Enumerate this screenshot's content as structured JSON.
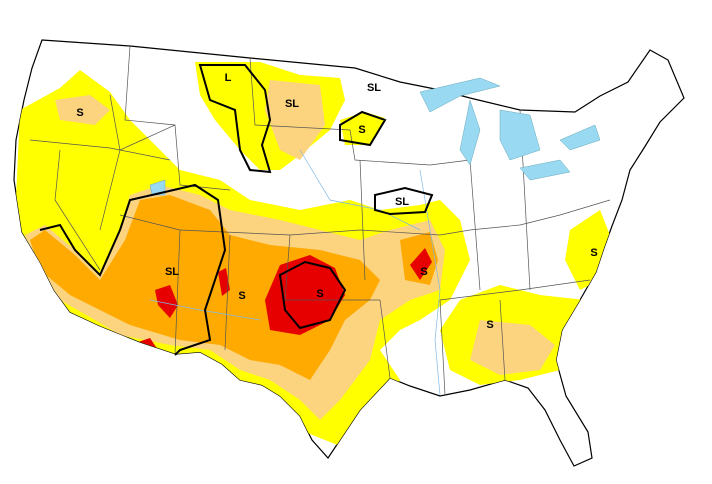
{
  "map": {
    "labels": [
      "S",
      "L",
      "SL",
      "SL",
      "S",
      "SL",
      "SL",
      "S",
      "S",
      "S",
      "S",
      "S"
    ]
  }
}
